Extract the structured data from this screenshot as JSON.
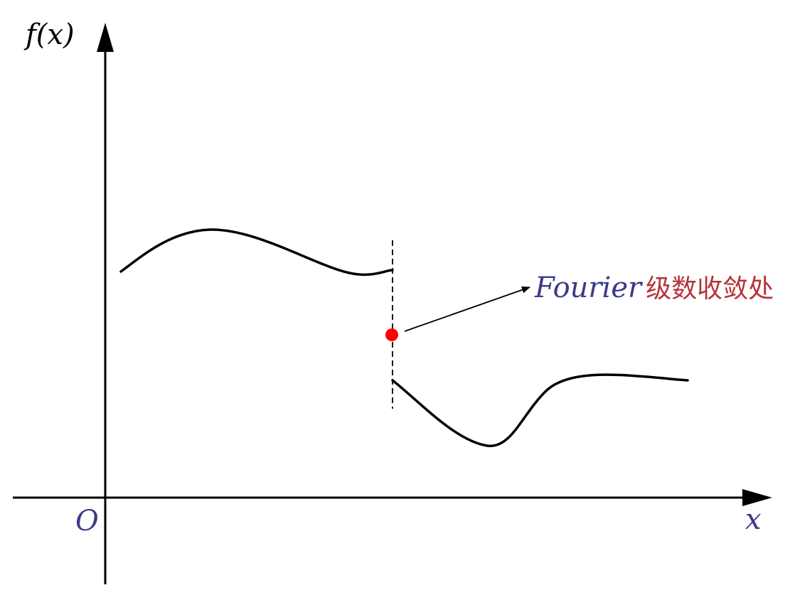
{
  "axes": {
    "y_label": "f(x)",
    "x_label": "x",
    "origin_label": "O"
  },
  "annotation": {
    "term": "Fourier",
    "text": "级数收敛处",
    "term_color": "#3a3a86",
    "text_color": "#b5333a"
  },
  "colors": {
    "axis": "#000000",
    "curve": "#000000",
    "point": "#ff0000",
    "label": "#3a3a86"
  }
}
